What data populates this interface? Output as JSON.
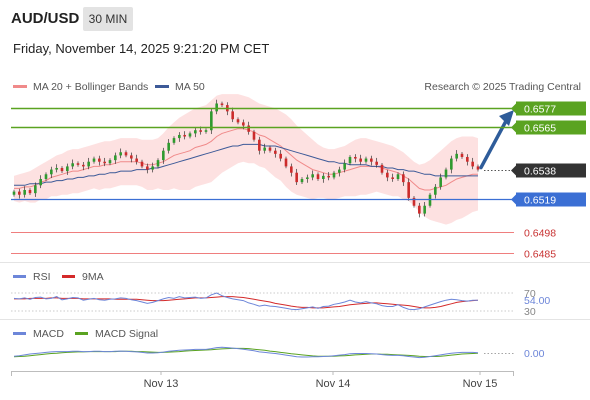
{
  "header": {
    "symbol": "AUD/USD",
    "timeframe": "30 MIN",
    "datetime": "Friday, November 14, 2025 9:21:20 PM CET"
  },
  "colors": {
    "bollinger_fill": "#fddcdc",
    "ma20": "#f08a8a",
    "ma50": "#3d5a98",
    "resistance": "#5aa321",
    "support": "#3b6fd4",
    "weak_support": "#ef7e7e",
    "current_price": "#333333",
    "arrow": "#2e5c9a",
    "candle_up": "#2e9a2e",
    "candle_down": "#cc2b2b",
    "rsi": "#6d86d9",
    "rsi_ma": "#d42a2a",
    "macd": "#6d86d9",
    "macd_signal": "#5aa321"
  },
  "chart_data": [
    {
      "type": "candlestick",
      "title": "",
      "legend": [
        {
          "label": "MA 20 + Bollinger Bands",
          "color": "#f08a8a"
        },
        {
          "label": "MA 50",
          "color": "#3d5a98"
        }
      ],
      "attribution": "Research © 2025 Trading Central",
      "x_ticks": [
        "Nov 13",
        "Nov 14",
        "Nov 15"
      ],
      "price_levels": [
        {
          "value": 0.6577,
          "label": "0.6577",
          "role": "resistance"
        },
        {
          "value": 0.6565,
          "label": "0.6565",
          "role": "resistance"
        },
        {
          "value": 0.6538,
          "label": "0.6538",
          "role": "current"
        },
        {
          "value": 0.6519,
          "label": "0.6519",
          "role": "pivot"
        },
        {
          "value": 0.6498,
          "label": "0.6498",
          "role": "support"
        },
        {
          "value": 0.6485,
          "label": "0.6485",
          "role": "support"
        }
      ],
      "close": [
        0.6524,
        0.6522,
        0.6525,
        0.6523,
        0.6528,
        0.6532,
        0.6535,
        0.6538,
        0.6539,
        0.6537,
        0.654,
        0.6542,
        0.6541,
        0.654,
        0.6543,
        0.6545,
        0.6543,
        0.6542,
        0.6544,
        0.6547,
        0.6549,
        0.6547,
        0.6545,
        0.6543,
        0.654,
        0.6538,
        0.654,
        0.6544,
        0.655,
        0.6555,
        0.6558,
        0.656,
        0.6559,
        0.6561,
        0.6563,
        0.6562,
        0.6563,
        0.6575,
        0.658,
        0.6579,
        0.6575,
        0.657,
        0.6568,
        0.6566,
        0.6562,
        0.6557,
        0.655,
        0.6552,
        0.655,
        0.6548,
        0.6545,
        0.654,
        0.6536,
        0.653,
        0.6532,
        0.6533,
        0.6535,
        0.6532,
        0.6534,
        0.6533,
        0.6536,
        0.6538,
        0.6542,
        0.6546,
        0.6545,
        0.6543,
        0.6545,
        0.6543,
        0.6541,
        0.6536,
        0.6533,
        0.6532,
        0.6535,
        0.653,
        0.652,
        0.6515,
        0.651,
        0.6515,
        0.6522,
        0.6527,
        0.6533,
        0.6538,
        0.6545,
        0.6548,
        0.6546,
        0.6543,
        0.654,
        0.6538
      ],
      "ma20": [
        0.6526,
        0.6526,
        0.6527,
        0.6527,
        0.6528,
        0.653,
        0.6531,
        0.6533,
        0.6534,
        0.6535,
        0.6536,
        0.6537,
        0.6537,
        0.6538,
        0.6539,
        0.654,
        0.654,
        0.6541,
        0.6541,
        0.6542,
        0.6543,
        0.6543,
        0.6543,
        0.6543,
        0.6542,
        0.6541,
        0.6541,
        0.6542,
        0.6543,
        0.6545,
        0.6547,
        0.6548,
        0.6549,
        0.655,
        0.6552,
        0.6553,
        0.6554,
        0.6556,
        0.6559,
        0.6561,
        0.6562,
        0.6563,
        0.6564,
        0.6564,
        0.6563,
        0.6562,
        0.656,
        0.6559,
        0.6557,
        0.6555,
        0.6553,
        0.655,
        0.6547,
        0.6544,
        0.6542,
        0.654,
        0.6538,
        0.6537,
        0.6536,
        0.6535,
        0.6535,
        0.6536,
        0.6537,
        0.6538,
        0.6539,
        0.654,
        0.654,
        0.654,
        0.654,
        0.6539,
        0.6538,
        0.6537,
        0.6536,
        0.6534,
        0.6532,
        0.6529,
        0.6526,
        0.6525,
        0.6525,
        0.6526,
        0.6527,
        0.6528,
        0.653,
        0.6532,
        0.6533,
        0.6534,
        0.6535,
        0.6535
      ],
      "bb_upper": [
        0.6534,
        0.6535,
        0.6536,
        0.6537,
        0.6539,
        0.6541,
        0.6543,
        0.6545,
        0.6547,
        0.6548,
        0.655,
        0.6551,
        0.6551,
        0.6552,
        0.6553,
        0.6554,
        0.6555,
        0.6556,
        0.6556,
        0.6557,
        0.6558,
        0.6558,
        0.6558,
        0.6558,
        0.6557,
        0.6557,
        0.6557,
        0.6558,
        0.6561,
        0.6565,
        0.6568,
        0.6571,
        0.6573,
        0.6575,
        0.6577,
        0.6578,
        0.6579,
        0.6582,
        0.6585,
        0.6586,
        0.6586,
        0.6586,
        0.6586,
        0.6585,
        0.6584,
        0.6582,
        0.658,
        0.6579,
        0.6578,
        0.6577,
        0.6575,
        0.6573,
        0.657,
        0.6566,
        0.6563,
        0.656,
        0.6557,
        0.6554,
        0.6552,
        0.6551,
        0.6551,
        0.6552,
        0.6553,
        0.6555,
        0.6557,
        0.6558,
        0.6558,
        0.6557,
        0.6556,
        0.6555,
        0.6554,
        0.6553,
        0.6551,
        0.6549,
        0.6546,
        0.6543,
        0.6541,
        0.6542,
        0.6544,
        0.6547,
        0.655,
        0.6553,
        0.6556,
        0.6558,
        0.6559,
        0.6559,
        0.6559,
        0.6558
      ],
      "bb_lower": [
        0.6518,
        0.6517,
        0.6518,
        0.6517,
        0.6517,
        0.6519,
        0.6519,
        0.6521,
        0.6521,
        0.6522,
        0.6522,
        0.6523,
        0.6523,
        0.6524,
        0.6525,
        0.6526,
        0.6525,
        0.6526,
        0.6526,
        0.6527,
        0.6528,
        0.6528,
        0.6528,
        0.6528,
        0.6527,
        0.6525,
        0.6525,
        0.6526,
        0.6525,
        0.6525,
        0.6526,
        0.6525,
        0.6525,
        0.6525,
        0.6527,
        0.6528,
        0.6529,
        0.653,
        0.6533,
        0.6536,
        0.6538,
        0.654,
        0.6542,
        0.6543,
        0.6542,
        0.6542,
        0.654,
        0.6539,
        0.6536,
        0.6533,
        0.6531,
        0.6527,
        0.6524,
        0.6522,
        0.6521,
        0.652,
        0.6519,
        0.652,
        0.652,
        0.6519,
        0.6519,
        0.652,
        0.6521,
        0.6521,
        0.6521,
        0.6522,
        0.6522,
        0.6523,
        0.6524,
        0.6523,
        0.6522,
        0.6521,
        0.6521,
        0.6519,
        0.6518,
        0.6515,
        0.6511,
        0.6508,
        0.6506,
        0.6505,
        0.6504,
        0.6503,
        0.6504,
        0.6506,
        0.6507,
        0.6509,
        0.6511,
        0.6512
      ],
      "ma50": [
        0.6528,
        0.6528,
        0.6528,
        0.6529,
        0.6529,
        0.6529,
        0.653,
        0.653,
        0.6531,
        0.6531,
        0.6532,
        0.6532,
        0.6533,
        0.6533,
        0.6534,
        0.6534,
        0.6535,
        0.6535,
        0.6536,
        0.6536,
        0.6537,
        0.6537,
        0.6537,
        0.6538,
        0.6538,
        0.6538,
        0.6539,
        0.6539,
        0.654,
        0.6541,
        0.6542,
        0.6543,
        0.6544,
        0.6545,
        0.6546,
        0.6547,
        0.6548,
        0.6549,
        0.655,
        0.6551,
        0.6552,
        0.6553,
        0.6553,
        0.6554,
        0.6554,
        0.6554,
        0.6554,
        0.6553,
        0.6553,
        0.6553,
        0.6552,
        0.6551,
        0.655,
        0.6549,
        0.6548,
        0.6547,
        0.6546,
        0.6545,
        0.6544,
        0.6543,
        0.6543,
        0.6542,
        0.6542,
        0.6541,
        0.6541,
        0.6541,
        0.6541,
        0.654,
        0.654,
        0.654,
        0.6539,
        0.6539,
        0.6538,
        0.6538,
        0.6537,
        0.6537,
        0.6536,
        0.6535,
        0.6535,
        0.6534,
        0.6534,
        0.6534,
        0.6534,
        0.6534,
        0.6534,
        0.6534,
        0.6534,
        0.6534
      ]
    },
    {
      "type": "line",
      "title": "",
      "legend": [
        {
          "label": "RSI",
          "color": "#6d86d9"
        },
        {
          "label": "9MA",
          "color": "#d42a2a"
        }
      ],
      "ylim": [
        30,
        70
      ],
      "levels": [
        {
          "value": 70,
          "label": "70"
        },
        {
          "value": 30,
          "label": "30"
        }
      ],
      "current_label": "54.00",
      "series": [
        {
          "name": "RSI",
          "values": [
            58,
            57,
            59,
            56,
            60,
            61,
            57,
            58,
            62,
            55,
            57,
            60,
            59,
            54,
            56,
            58,
            55,
            54,
            56,
            57,
            59,
            58,
            55,
            53,
            50,
            47,
            49,
            53,
            57,
            60,
            58,
            62,
            59,
            60,
            61,
            58,
            59,
            66,
            70,
            64,
            60,
            57,
            55,
            53,
            48,
            45,
            41,
            43,
            41,
            40,
            38,
            36,
            34,
            33,
            35,
            37,
            39,
            36,
            40,
            41,
            45,
            47,
            50,
            54,
            50,
            48,
            51,
            48,
            46,
            42,
            40,
            40,
            44,
            38,
            34,
            33,
            35,
            39,
            43,
            47,
            51,
            54,
            56,
            55,
            53,
            52,
            54,
            54
          ]
        },
        {
          "name": "9MA",
          "values": [
            57,
            57,
            57,
            58,
            58,
            58,
            58,
            59,
            59,
            58,
            58,
            58,
            58,
            57,
            57,
            57,
            57,
            57,
            57,
            56,
            56,
            56,
            56,
            56,
            55,
            54,
            53,
            53,
            53,
            54,
            55,
            56,
            57,
            58,
            59,
            59,
            59,
            60,
            61,
            62,
            62,
            62,
            61,
            60,
            58,
            56,
            54,
            52,
            50,
            47,
            45,
            43,
            41,
            39,
            38,
            38,
            37,
            37,
            37,
            38,
            39,
            40,
            42,
            44,
            45,
            46,
            47,
            48,
            48,
            47,
            46,
            45,
            44,
            43,
            42,
            40,
            38,
            37,
            37,
            38,
            40,
            43,
            46,
            49,
            51,
            52,
            53,
            54
          ]
        }
      ]
    },
    {
      "type": "line",
      "title": "",
      "legend": [
        {
          "label": "MACD",
          "color": "#6d86d9"
        },
        {
          "label": "MACD Signal",
          "color": "#5aa321"
        }
      ],
      "current_label": "0.00",
      "series": [
        {
          "name": "MACD",
          "values": [
            -0.0001,
            -8e-05,
            -5e-05,
            -2e-05,
            0.0,
            2e-05,
            4e-05,
            6e-05,
            7e-05,
            7e-05,
            7e-05,
            8e-05,
            8e-05,
            7e-05,
            7e-05,
            8e-05,
            8e-05,
            7e-05,
            7e-05,
            8e-05,
            9e-05,
            8e-05,
            7e-05,
            6e-05,
            4e-05,
            2e-05,
            2e-05,
            3e-05,
            5e-05,
            8e-05,
            0.0001,
            0.00012,
            0.00013,
            0.00014,
            0.00015,
            0.00015,
            0.00015,
            0.00018,
            0.00022,
            0.00023,
            0.00022,
            0.0002,
            0.00018,
            0.00016,
            0.00013,
            0.0001,
            6e-05,
            4e-05,
            2e-05,
            0.0,
            -3e-05,
            -6e-05,
            -9e-05,
            -0.00012,
            -0.00013,
            -0.00013,
            -0.00012,
            -0.00012,
            -0.00011,
            -0.0001,
            -8e-05,
            -6e-05,
            -4e-05,
            -1e-05,
            0.0,
            0.0,
            0.0,
            -1e-05,
            -2e-05,
            -4e-05,
            -6e-05,
            -7e-05,
            -7e-05,
            -8e-05,
            -0.00011,
            -0.00013,
            -0.00015,
            -0.00014,
            -0.00011,
            -8e-05,
            -5e-05,
            -2e-05,
            1e-05,
            3e-05,
            4e-05,
            4e-05,
            4e-05,
            3e-05
          ]
        },
        {
          "name": "MACD Signal",
          "values": [
            -0.00012,
            -0.00011,
            -0.0001,
            -8e-05,
            -6e-05,
            -4e-05,
            -2e-05,
            0.0,
            1e-05,
            3e-05,
            4e-05,
            5e-05,
            6e-05,
            6e-05,
            7e-05,
            7e-05,
            7e-05,
            7e-05,
            7e-05,
            7e-05,
            8e-05,
            8e-05,
            8e-05,
            7e-05,
            7e-05,
            6e-05,
            5e-05,
            4e-05,
            4e-05,
            5e-05,
            6e-05,
            7e-05,
            9e-05,
            0.0001,
            0.00011,
            0.00012,
            0.00013,
            0.00014,
            0.00016,
            0.00017,
            0.00018,
            0.00019,
            0.00019,
            0.00019,
            0.00018,
            0.00016,
            0.00014,
            0.00012,
            9e-05,
            7e-05,
            4e-05,
            2e-05,
            -1e-05,
            -3e-05,
            -5e-05,
            -7e-05,
            -9e-05,
            -0.0001,
            -0.0001,
            -0.0001,
            -0.0001,
            -9e-05,
            -8e-05,
            -7e-05,
            -5e-05,
            -4e-05,
            -3e-05,
            -2e-05,
            -2e-05,
            -3e-05,
            -3e-05,
            -4e-05,
            -5e-05,
            -6e-05,
            -7e-05,
            -8e-05,
            -0.0001,
            -0.00011,
            -0.00011,
            -0.00011,
            -0.0001,
            -8e-05,
            -6e-05,
            -4e-05,
            -2e-05,
            -1e-05,
            0.0,
            1e-05
          ]
        }
      ]
    }
  ]
}
